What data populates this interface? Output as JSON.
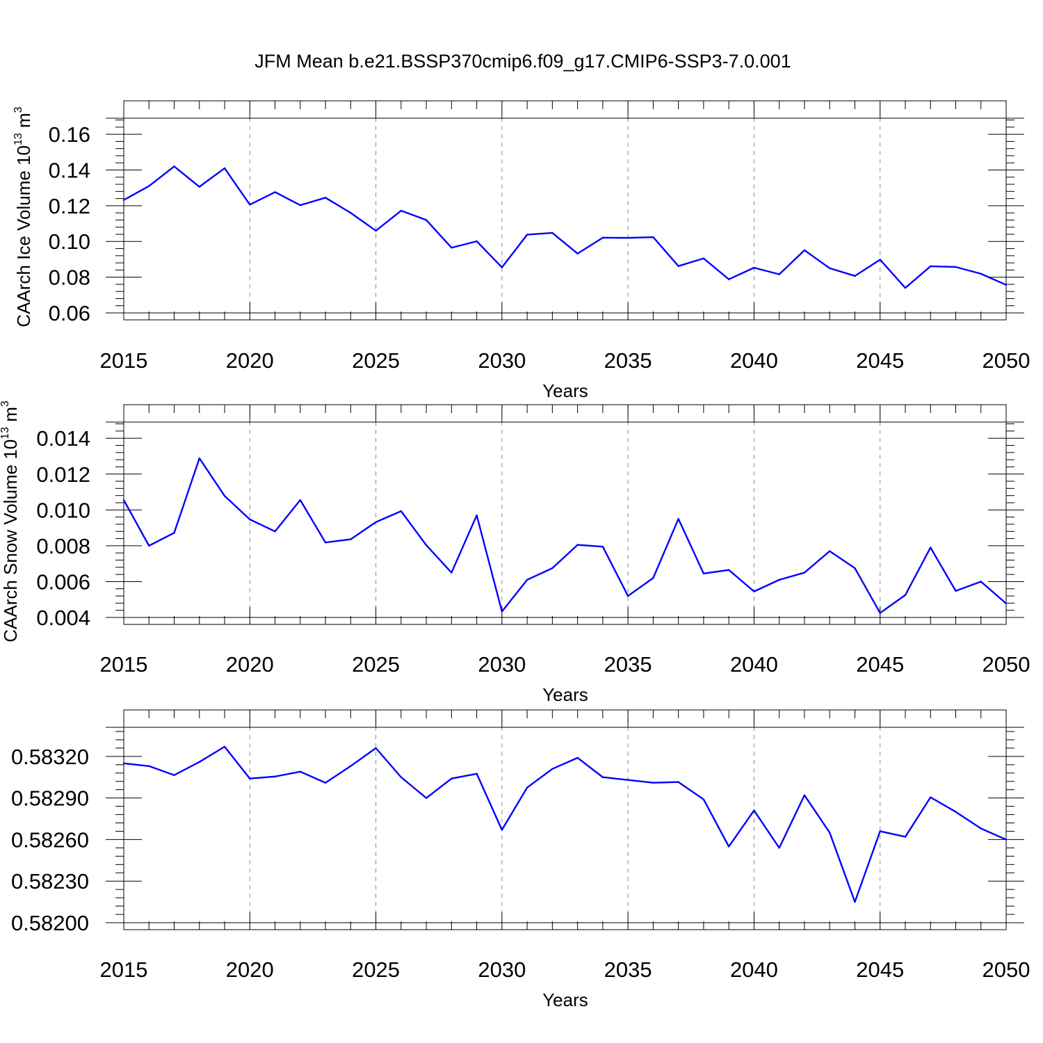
{
  "title": "JFM Mean b.e21.BSSP370cmip6.f09_g17.CMIP6-SSP3-7.0.001",
  "line_color": "#0000ff",
  "chart_data": [
    {
      "type": "line",
      "id": "ice",
      "ylabel_main": "CAArch Ice Volume 10",
      "ylabel_exp1": "13",
      "ylabel_unit": " m",
      "ylabel_exp2": "3",
      "xlabel": "Years",
      "xlim": [
        2015,
        2050
      ],
      "ylim": [
        0.06,
        0.169
      ],
      "xticks": [
        "2015",
        "2020",
        "2025",
        "2030",
        "2035",
        "2040",
        "2045",
        "2050"
      ],
      "yticks": [
        "0.06",
        "0.08",
        "0.10",
        "0.12",
        "0.14",
        "0.16"
      ],
      "grid": "vertical dashed at major x ticks",
      "x": [
        2015,
        2016,
        2017,
        2018,
        2019,
        2020,
        2021,
        2022,
        2023,
        2024,
        2025,
        2026,
        2027,
        2028,
        2029,
        2030,
        2031,
        2032,
        2033,
        2034,
        2035,
        2036,
        2037,
        2038,
        2039,
        2040,
        2041,
        2042,
        2043,
        2044,
        2045,
        2046,
        2047,
        2048,
        2049,
        2050
      ],
      "y": [
        0.1232,
        0.131,
        0.142,
        0.1306,
        0.141,
        0.1206,
        0.1276,
        0.1203,
        0.1245,
        0.116,
        0.106,
        0.1172,
        0.112,
        0.0965,
        0.1001,
        0.0855,
        0.1038,
        0.1048,
        0.0932,
        0.1021,
        0.102,
        0.1024,
        0.0862,
        0.0905,
        0.0788,
        0.0853,
        0.0816,
        0.0951,
        0.085,
        0.0807,
        0.0898,
        0.074,
        0.0861,
        0.0857,
        0.0819,
        0.0757
      ]
    },
    {
      "type": "line",
      "id": "snow",
      "ylabel_main": "CAArch Snow Volume 10",
      "ylabel_exp1": "13",
      "ylabel_unit": " m",
      "ylabel_exp2": "3",
      "xlabel": "Years",
      "xlim": [
        2015,
        2050
      ],
      "ylim": [
        0.004,
        0.0149
      ],
      "xticks": [
        "2015",
        "2020",
        "2025",
        "2030",
        "2035",
        "2040",
        "2045",
        "2050"
      ],
      "yticks": [
        "0.004",
        "0.006",
        "0.008",
        "0.010",
        "0.012",
        "0.014"
      ],
      "grid": "vertical dashed at major x ticks",
      "x": [
        2015,
        2016,
        2017,
        2018,
        2019,
        2020,
        2021,
        2022,
        2023,
        2024,
        2025,
        2026,
        2027,
        2028,
        2029,
        2030,
        2031,
        2032,
        2033,
        2034,
        2035,
        2036,
        2037,
        2038,
        2039,
        2040,
        2041,
        2042,
        2043,
        2044,
        2045,
        2046,
        2047,
        2048,
        2049,
        2050
      ],
      "y": [
        0.01055,
        0.008,
        0.00872,
        0.01288,
        0.01078,
        0.00947,
        0.0088,
        0.01055,
        0.00818,
        0.00836,
        0.00932,
        0.00993,
        0.00803,
        0.0065,
        0.0097,
        0.00433,
        0.0061,
        0.00675,
        0.00805,
        0.00795,
        0.0052,
        0.0062,
        0.0095,
        0.00645,
        0.00665,
        0.00545,
        0.0061,
        0.0065,
        0.0077,
        0.00675,
        0.00425,
        0.00525,
        0.0079,
        0.00548,
        0.006,
        0.00478
      ]
    },
    {
      "type": "line",
      "id": "ratio",
      "ylabel_main": "",
      "xlabel": "Years",
      "xlim": [
        2015,
        2050
      ],
      "ylim": [
        0.582,
        0.58341
      ],
      "xticks": [
        "2015",
        "2020",
        "2025",
        "2030",
        "2035",
        "2040",
        "2045",
        "2050"
      ],
      "yticks": [
        "0.58200",
        "0.58230",
        "0.58260",
        "0.58290",
        "0.58320"
      ],
      "grid": "vertical dashed at major x ticks",
      "x": [
        2015,
        2016,
        2017,
        2018,
        2019,
        2020,
        2021,
        2022,
        2023,
        2024,
        2025,
        2026,
        2027,
        2028,
        2029,
        2030,
        2031,
        2032,
        2033,
        2034,
        2035,
        2036,
        2037,
        2038,
        2039,
        2040,
        2041,
        2042,
        2043,
        2044,
        2045,
        2046,
        2047,
        2048,
        2049,
        2050
      ],
      "y": [
        0.58315,
        0.58313,
        0.583065,
        0.58316,
        0.58327,
        0.58304,
        0.583055,
        0.58309,
        0.58301,
        0.58313,
        0.58326,
        0.58305,
        0.5829,
        0.58304,
        0.583075,
        0.58267,
        0.582975,
        0.58311,
        0.58319,
        0.58305,
        0.58303,
        0.58301,
        0.583015,
        0.58289,
        0.58255,
        0.58281,
        0.58254,
        0.58292,
        0.58265,
        0.58215,
        0.58266,
        0.58262,
        0.582905,
        0.5828,
        0.58268,
        0.5826
      ]
    }
  ]
}
